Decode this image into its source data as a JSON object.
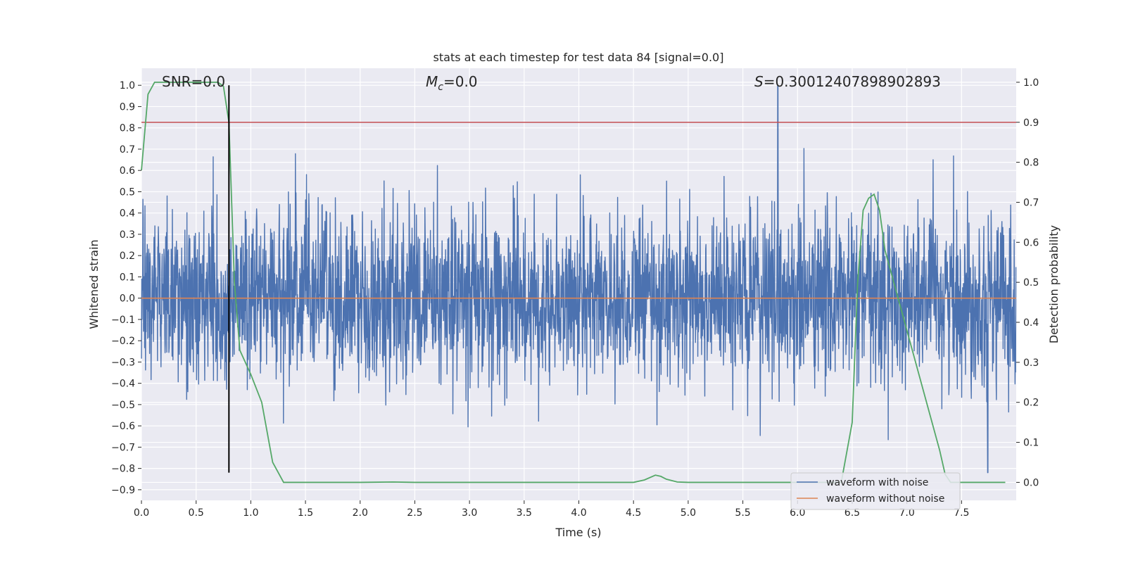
{
  "chart_data": {
    "type": "line",
    "title": "stats at each timestep for test data 84 [signal=0.0]",
    "xlabel": "Time (s)",
    "ylabel_left": "Whitened strain",
    "ylabel_right": "Detection probability",
    "xlim": [
      0.0,
      8.0
    ],
    "ylim_left": [
      -0.95,
      1.08
    ],
    "ylim_right": [
      -0.045,
      1.035
    ],
    "grid": true,
    "legend_position": "lower-right",
    "x_ticks": [
      "0.0",
      "0.5",
      "1.0",
      "1.5",
      "2.0",
      "2.5",
      "3.0",
      "3.5",
      "4.0",
      "4.5",
      "5.0",
      "5.5",
      "6.0",
      "6.5",
      "7.0",
      "7.5"
    ],
    "y_left_ticks": [
      "1.0",
      "0.9",
      "0.8",
      "0.7",
      "0.6",
      "0.5",
      "0.4",
      "0.3",
      "0.2",
      "0.1",
      "0.0",
      "−0.1",
      "−0.2",
      "−0.3",
      "−0.4",
      "−0.5",
      "−0.6",
      "−0.7",
      "−0.8",
      "−0.9"
    ],
    "y_right_ticks": [
      "1.0",
      "0.9",
      "0.8",
      "0.7",
      "0.6",
      "0.5",
      "0.4",
      "0.3",
      "0.2",
      "0.1",
      "0.0"
    ],
    "annotations": {
      "snr": "SNR=0.0",
      "mc_symbol": "M",
      "mc_sub": "c",
      "mc_value": "=0.0",
      "s_symbol": "S",
      "s_value": "=0.30012407898902893"
    },
    "series": [
      {
        "name": "waveform with noise",
        "axis": "left",
        "color": "#4c72b0",
        "description_values": "dense noise between about -0.6 and 0.6 with spikes to 1.0 near t=5.8 and -0.8 near t=7.75"
      },
      {
        "name": "waveform without noise",
        "axis": "left",
        "color": "#dd8452",
        "values": [
          [
            0.0,
            0.0
          ],
          [
            8.0,
            0.0
          ]
        ]
      },
      {
        "name": "detection probability",
        "axis": "right",
        "color": "#55a868",
        "x": [
          0.0,
          0.06,
          0.12,
          0.2,
          0.4,
          0.6,
          0.7,
          0.75,
          0.8,
          0.85,
          0.9,
          1.0,
          1.1,
          1.2,
          1.3,
          1.5,
          2.0,
          2.3,
          2.5,
          3.0,
          3.5,
          4.0,
          4.5,
          4.6,
          4.7,
          4.75,
          4.8,
          4.9,
          5.0,
          5.5,
          6.0,
          6.4,
          6.5,
          6.55,
          6.6,
          6.65,
          6.7,
          6.75,
          6.8,
          6.9,
          7.0,
          7.1,
          7.2,
          7.3,
          7.35,
          7.4,
          7.5,
          7.6,
          7.7,
          7.9
        ],
        "y": [
          0.78,
          0.97,
          1.0,
          1.0,
          1.0,
          1.0,
          1.0,
          0.99,
          0.9,
          0.5,
          0.33,
          0.27,
          0.2,
          0.05,
          0.0,
          0.0,
          0.0,
          0.001,
          0.0,
          0.0,
          0.0,
          0.0,
          0.0,
          0.006,
          0.018,
          0.015,
          0.008,
          0.001,
          0.0,
          0.0,
          0.0,
          0.0,
          0.15,
          0.5,
          0.68,
          0.71,
          0.72,
          0.68,
          0.58,
          0.48,
          0.38,
          0.28,
          0.18,
          0.08,
          0.02,
          0.0,
          0.0,
          0.0,
          0.0,
          0.0
        ]
      }
    ],
    "threshold": {
      "axis": "right",
      "value": 0.9,
      "color": "#c44e52"
    },
    "event_marker": {
      "x": 0.8,
      "y_from": -0.82,
      "y_to": 1.0,
      "color": "#000000"
    }
  },
  "legend": [
    {
      "label": "waveform with noise",
      "color": "#4c72b0"
    },
    {
      "label": "waveform without noise",
      "color": "#dd8452"
    }
  ]
}
